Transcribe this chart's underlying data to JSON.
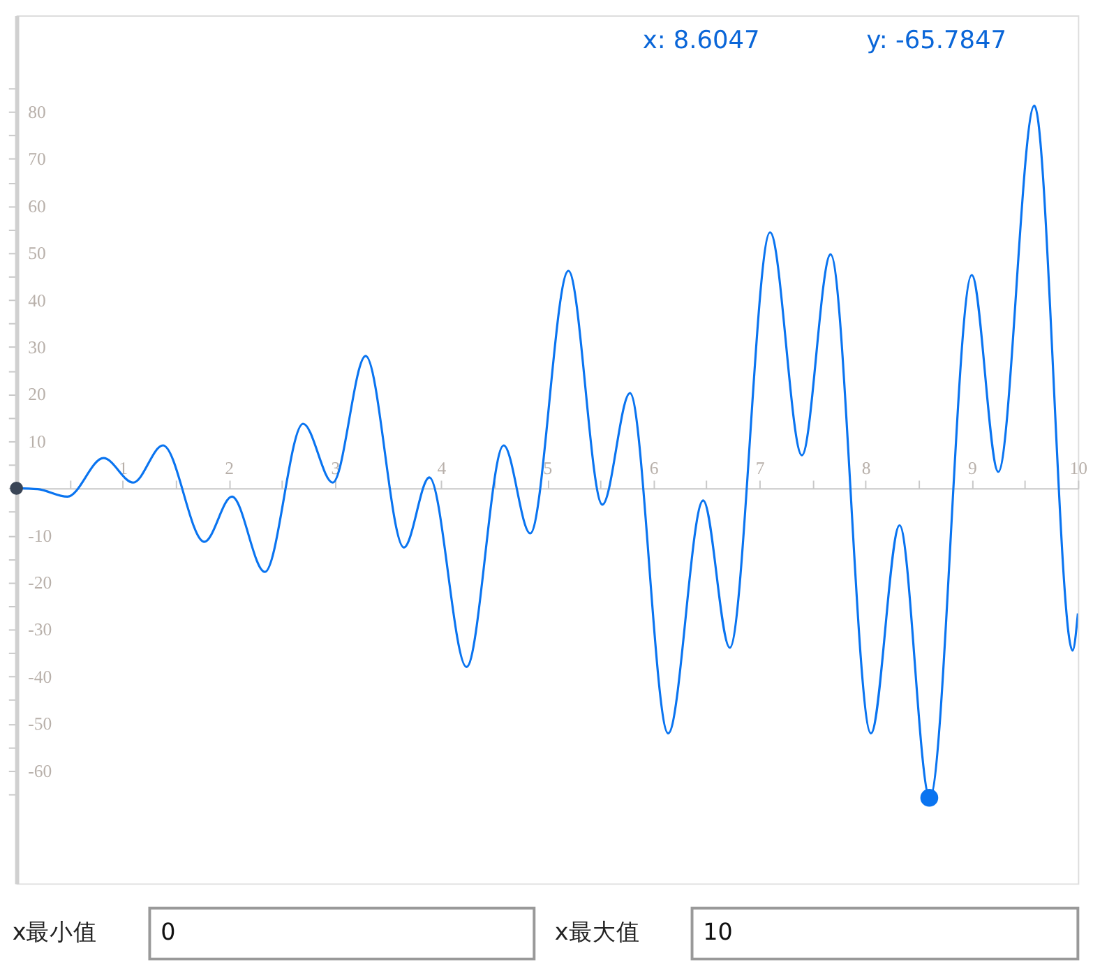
{
  "chart_data": {
    "type": "line",
    "xlim": [
      0,
      10
    ],
    "ylim": [
      -84,
      100.5
    ],
    "xticks": [
      {
        "value": 0,
        "label": null
      },
      {
        "value": 0.5,
        "label": null
      },
      1,
      {
        "value": 1.5,
        "label": null
      },
      2,
      {
        "value": 2.5,
        "label": null
      },
      3,
      {
        "value": 3.5,
        "label": null
      },
      4,
      {
        "value": 4.5,
        "label": null
      },
      5,
      {
        "value": 5.5,
        "label": null
      },
      6,
      {
        "value": 6.5,
        "label": null
      },
      7,
      {
        "value": 7.5,
        "label": null
      },
      8,
      {
        "value": 8.5,
        "label": null
      },
      9,
      {
        "value": 9.5,
        "label": null
      },
      10
    ],
    "yticks": [
      {
        "value": -65,
        "label": null
      },
      -60,
      {
        "value": -55,
        "label": null
      },
      -50,
      {
        "value": -45,
        "label": null
      },
      -40,
      {
        "value": -35,
        "label": null
      },
      -30,
      {
        "value": -25,
        "label": null
      },
      -20,
      {
        "value": -15,
        "label": null
      },
      -10,
      {
        "value": -5,
        "label": null
      },
      {
        "value": 0,
        "label": null
      },
      {
        "value": 5,
        "label": null
      },
      10,
      {
        "value": 15,
        "label": null
      },
      20,
      {
        "value": 25,
        "label": null
      },
      30,
      {
        "value": 35,
        "label": null
      },
      40,
      {
        "value": 45,
        "label": null
      },
      50,
      {
        "value": 55,
        "label": null
      },
      60,
      {
        "value": 65,
        "label": null
      },
      70,
      {
        "value": 75,
        "label": null
      },
      80,
      {
        "value": 85,
        "label": null
      }
    ],
    "series": [
      {
        "color": "#0a74f0",
        "line_style": "solid",
        "marker": "none",
        "x": [
          0,
          0.2,
          0.48,
          0.82,
          1.1,
          1.38,
          1.77,
          2.03,
          2.34,
          2.7,
          2.98,
          3.29,
          3.65,
          3.89,
          4.24,
          4.59,
          4.84,
          5.2,
          5.52,
          5.78,
          6.14,
          6.47,
          6.72,
          7.1,
          7.4,
          7.67,
          8.05,
          8.32,
          8.6047,
          9.0,
          9.25,
          9.59,
          9.95,
          10
        ],
        "values": [
          0,
          -0.2,
          -1.8,
          6.4,
          1.2,
          9.1,
          -11.4,
          -1.8,
          -17.8,
          13.7,
          1.2,
          28.1,
          -12.6,
          2.3,
          -38.0,
          9.1,
          -9.6,
          46.2,
          -3.5,
          20.2,
          -52.1,
          -2.6,
          -33.9,
          54.4,
          7.0,
          49.7,
          -52.1,
          -7.9,
          -65.8,
          45.3,
          3.5,
          81.3,
          -34.5,
          -26.6
        ]
      },
      {
        "type": "scatter",
        "color": "#3a4556",
        "marker": "circle",
        "x": [
          0
        ],
        "values": [
          0
        ]
      },
      {
        "type": "scatter",
        "color": "#0a74f0",
        "marker": "circle",
        "x": [
          8.6
        ],
        "values": [
          -65.8
        ]
      }
    ],
    "annotations": [
      "x:  8.6047",
      "y:  -65.7847",
      "x最小值",
      "0",
      "x最大值",
      "10"
    ]
  }
}
